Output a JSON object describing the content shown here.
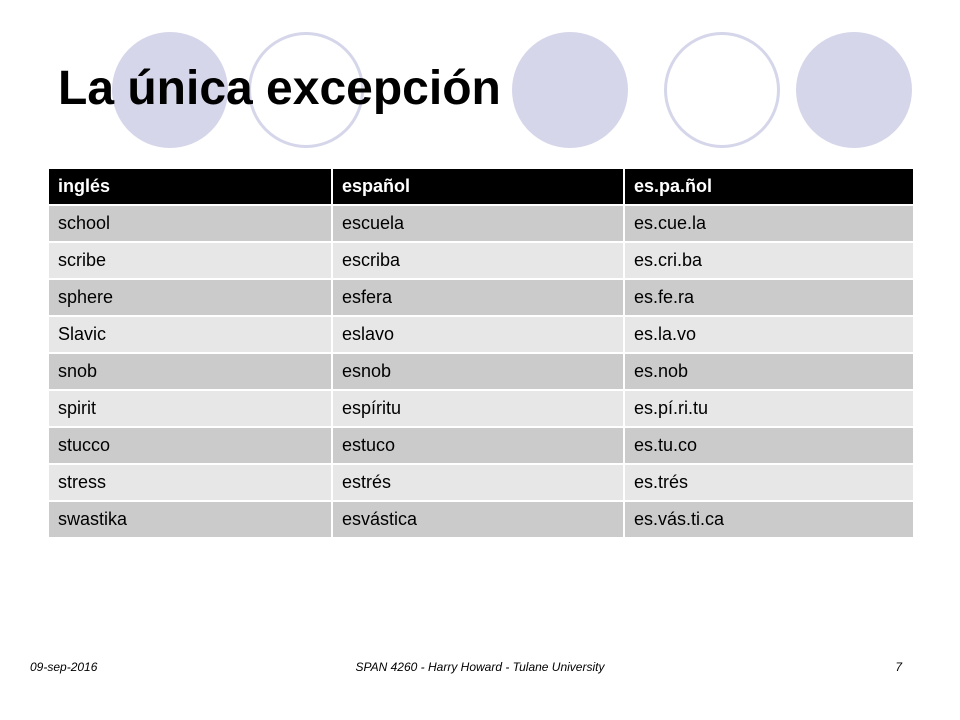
{
  "slide": {
    "title": "La única excepción"
  },
  "table": {
    "headers": [
      "inglés",
      "español",
      "es.pa.ñol"
    ],
    "rows": [
      [
        "school",
        "escuela",
        "es.cue.la"
      ],
      [
        "scribe",
        "escriba",
        "es.cri.ba"
      ],
      [
        "sphere",
        "esfera",
        "es.fe.ra"
      ],
      [
        "Slavic",
        "eslavo",
        "es.la.vo"
      ],
      [
        "snob",
        "esnob",
        "es.nob"
      ],
      [
        "spirit",
        "espíritu",
        "es.pí.ri.tu"
      ],
      [
        "stucco",
        "estuco",
        "es.tu.co"
      ],
      [
        "stress",
        "estrés",
        "es.trés"
      ],
      [
        "swastika",
        "esvástica",
        "es.vás.ti.ca"
      ]
    ]
  },
  "footer": {
    "date": "09-sep-2016",
    "center": "SPAN 4260 - Harry Howard - Tulane University",
    "page": "7"
  },
  "colors": {
    "header_bg": "#000000",
    "row_dark": "#cbcbcb",
    "row_light": "#e7e7e7",
    "circle": "#d6d6eb"
  }
}
